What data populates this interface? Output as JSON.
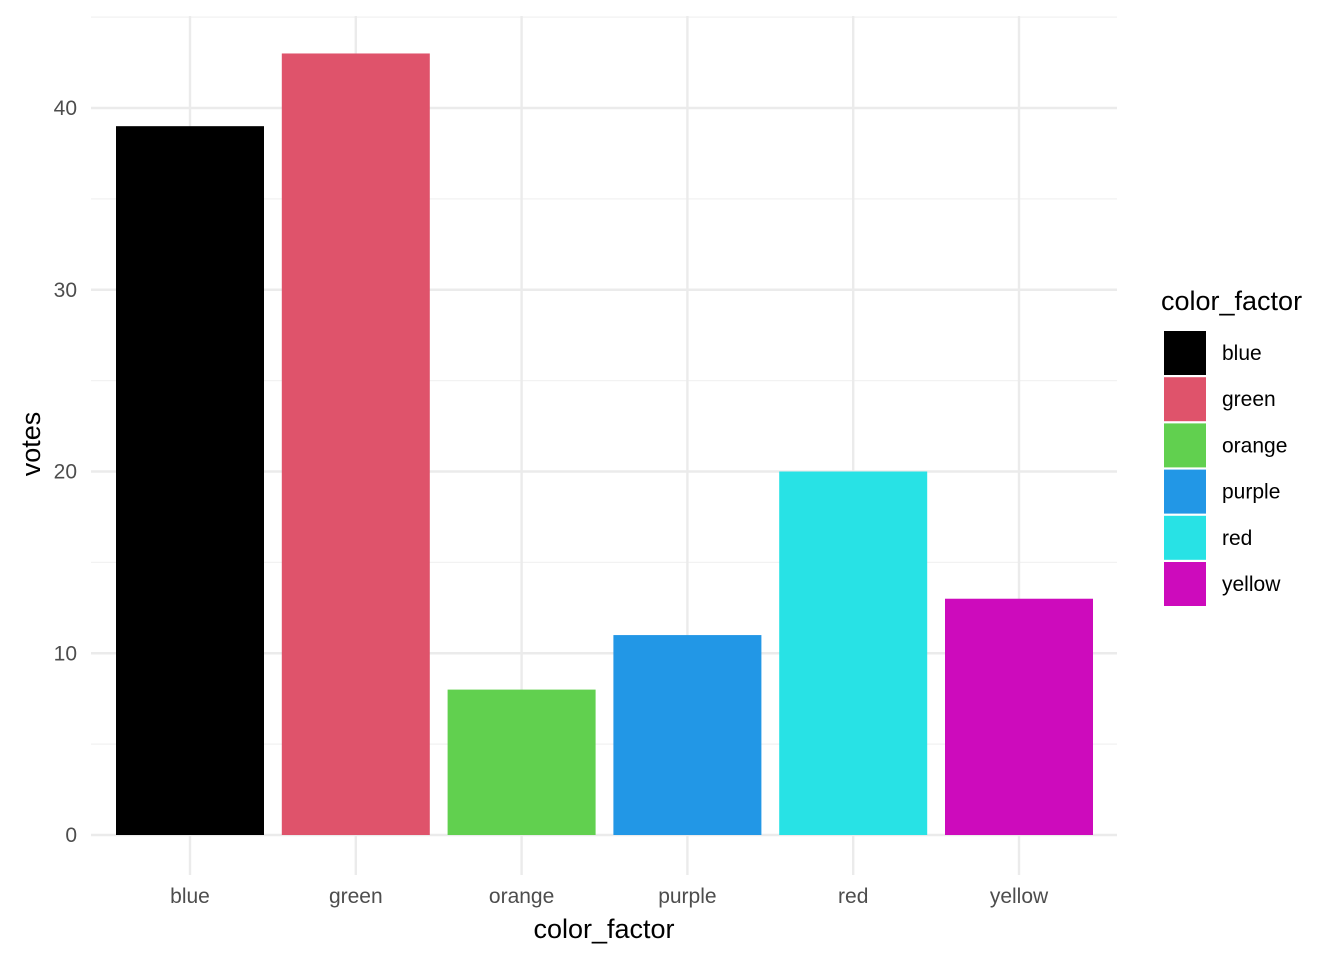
{
  "chart_data": {
    "type": "bar",
    "categories": [
      "blue",
      "green",
      "orange",
      "purple",
      "red",
      "yellow"
    ],
    "values": [
      39,
      43,
      8,
      11,
      20,
      13
    ],
    "colors": [
      "#000000",
      "#DF536B",
      "#61D04F",
      "#2297E6",
      "#28E2E5",
      "#CD0BBC"
    ],
    "xlabel": "color_factor",
    "ylabel": "votes",
    "ylim": [
      0,
      45
    ],
    "yticks": [
      0,
      10,
      20,
      30,
      40
    ],
    "grid": true,
    "legend": {
      "title": "color_factor",
      "position": "right",
      "entries": [
        "blue",
        "green",
        "orange",
        "purple",
        "red",
        "yellow"
      ]
    }
  }
}
